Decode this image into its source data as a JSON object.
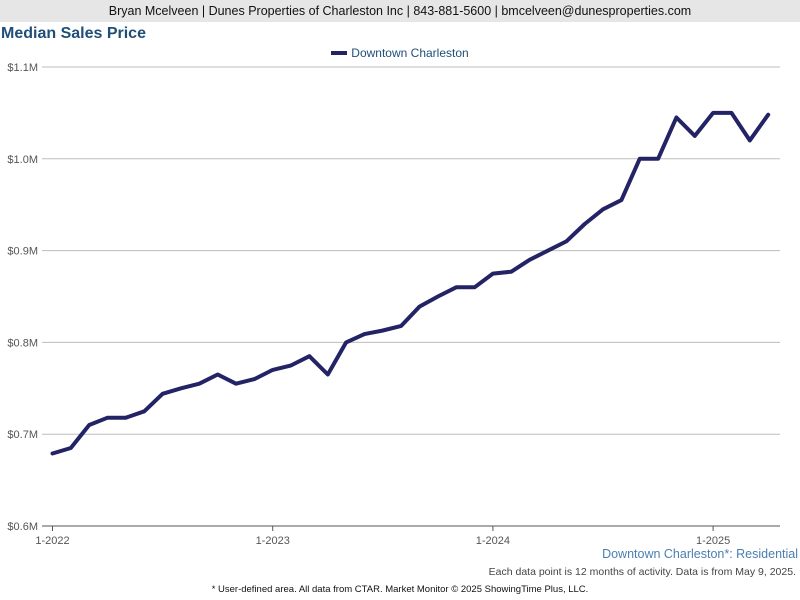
{
  "header": {
    "contact_line": "Bryan Mcelveen | Dunes Properties of Charleston Inc | 843-881-5600 | bmcelveen@dunesproperties.com"
  },
  "footer": {
    "area_label": "Downtown Charleston*: Residential",
    "data_note": "Each data point is 12 months of activity. Data is from May 9, 2025.",
    "copyright": "* User-defined area. All data from CTAR. Market Monitor © 2025 ShowingTime Plus, LLC."
  },
  "chart_data": {
    "type": "line",
    "title": "Median Sales Price",
    "xlabel": "",
    "ylabel": "",
    "ylim": [
      0.6,
      1.1
    ],
    "y_ticks": [
      {
        "value": 1.1,
        "label": "$1.1M"
      },
      {
        "value": 1.0,
        "label": "$1.0M"
      },
      {
        "value": 0.9,
        "label": "$0.9M"
      },
      {
        "value": 0.8,
        "label": "$0.8M"
      },
      {
        "value": 0.7,
        "label": "$0.7M"
      },
      {
        "value": 0.6,
        "label": "$0.6M"
      }
    ],
    "x_ticks": [
      {
        "value": "2022-01",
        "label": "1-2022"
      },
      {
        "value": "2023-01",
        "label": "1-2023"
      },
      {
        "value": "2024-01",
        "label": "1-2024"
      },
      {
        "value": "2025-01",
        "label": "1-2025"
      }
    ],
    "x_range": [
      "2022-01",
      "2025-04"
    ],
    "grid": true,
    "legend_position": "top-center",
    "colors": {
      "line": "#232366",
      "grid": "#bdbdbd",
      "tick_text": "#555555",
      "title": "#1f4e79"
    },
    "x": [
      "2022-01",
      "2022-02",
      "2022-03",
      "2022-04",
      "2022-05",
      "2022-06",
      "2022-07",
      "2022-08",
      "2022-09",
      "2022-10",
      "2022-11",
      "2022-12",
      "2023-01",
      "2023-02",
      "2023-03",
      "2023-04",
      "2023-05",
      "2023-06",
      "2023-07",
      "2023-08",
      "2023-09",
      "2023-10",
      "2023-11",
      "2023-12",
      "2024-01",
      "2024-02",
      "2024-03",
      "2024-04",
      "2024-05",
      "2024-06",
      "2024-07",
      "2024-08",
      "2024-09",
      "2024-10",
      "2024-11",
      "2024-12",
      "2025-01",
      "2025-02",
      "2025-03",
      "2025-04"
    ],
    "series": [
      {
        "name": "Downtown Charleston",
        "values": [
          0.679,
          0.685,
          0.71,
          0.718,
          0.718,
          0.725,
          0.744,
          0.75,
          0.755,
          0.765,
          0.755,
          0.76,
          0.77,
          0.775,
          0.785,
          0.765,
          0.8,
          0.809,
          0.813,
          0.818,
          0.839,
          0.85,
          0.86,
          0.86,
          0.875,
          0.877,
          0.89,
          0.9,
          0.91,
          0.929,
          0.945,
          0.955,
          1.0,
          1.0,
          1.045,
          1.025,
          1.05,
          1.05,
          1.02,
          1.048
        ]
      }
    ]
  }
}
